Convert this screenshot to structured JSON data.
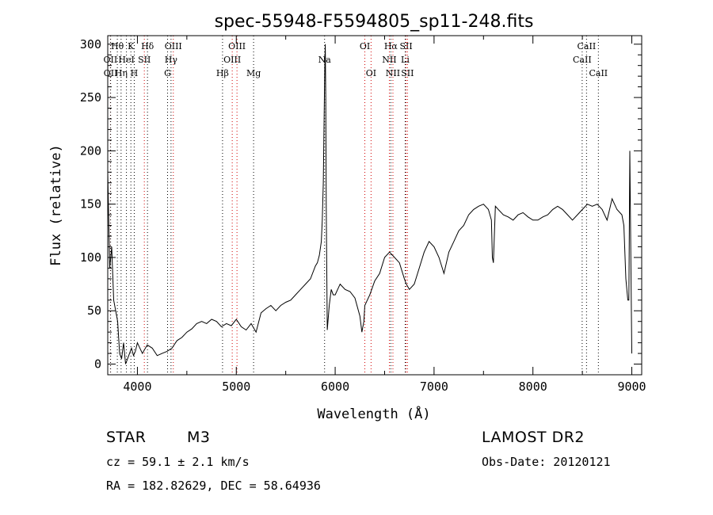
{
  "chart_data": {
    "type": "line",
    "title": "spec-55948-F5594805_sp11-248.fits",
    "xlabel": "Wavelength (Å)",
    "ylabel": "Flux (relative)",
    "xlim": [
      3700,
      9100
    ],
    "ylim": [
      -10,
      308
    ],
    "xticks": [
      4000,
      5000,
      6000,
      7000,
      8000,
      9000
    ],
    "yticks": [
      0,
      50,
      100,
      150,
      200,
      250,
      300
    ],
    "grid": false,
    "series": [
      {
        "x": [
          3700,
          3720,
          3740,
          3760,
          3780,
          3800,
          3820,
          3840,
          3860,
          3880,
          3900,
          3920,
          3940,
          3960,
          3980,
          4000,
          4050,
          4100,
          4150,
          4200,
          4250,
          4300,
          4350,
          4400,
          4450,
          4500,
          4550,
          4600,
          4650,
          4700,
          4750,
          4800,
          4850,
          4900,
          4950,
          5000,
          5050,
          5100,
          5150,
          5200,
          5250,
          5300,
          5350,
          5400,
          5450,
          5500,
          5550,
          5600,
          5650,
          5700,
          5750,
          5800,
          5820,
          5840,
          5860,
          5870,
          5880,
          5890,
          5895,
          5900,
          5905,
          5910,
          5920,
          5940,
          5960,
          5980,
          6000,
          6050,
          6100,
          6150,
          6200,
          6250,
          6270,
          6290,
          6300,
          6350,
          6400,
          6450,
          6500,
          6550,
          6600,
          6650,
          6700,
          6720,
          6750,
          6800,
          6850,
          6900,
          6950,
          7000,
          7050,
          7100,
          7150,
          7200,
          7250,
          7300,
          7350,
          7400,
          7450,
          7500,
          7550,
          7580,
          7590,
          7600,
          7620,
          7650,
          7700,
          7750,
          7800,
          7850,
          7900,
          7950,
          8000,
          8050,
          8100,
          8150,
          8200,
          8250,
          8300,
          8350,
          8400,
          8450,
          8500,
          8550,
          8600,
          8650,
          8700,
          8750,
          8800,
          8850,
          8900,
          8920,
          8940,
          8960,
          8970,
          8980,
          8990,
          9000
        ],
        "y": [
          180,
          90,
          110,
          60,
          50,
          40,
          10,
          5,
          20,
          0,
          5,
          10,
          15,
          8,
          12,
          20,
          10,
          18,
          15,
          8,
          10,
          12,
          15,
          22,
          25,
          30,
          33,
          38,
          40,
          38,
          42,
          40,
          35,
          38,
          36,
          42,
          35,
          32,
          38,
          30,
          48,
          52,
          55,
          50,
          55,
          58,
          60,
          65,
          70,
          75,
          80,
          92,
          95,
          102,
          115,
          135,
          170,
          240,
          280,
          300,
          250,
          150,
          32,
          55,
          70,
          65,
          65,
          75,
          70,
          68,
          62,
          45,
          30,
          40,
          55,
          65,
          78,
          85,
          100,
          105,
          100,
          95,
          80,
          75,
          70,
          75,
          90,
          105,
          115,
          110,
          100,
          85,
          105,
          115,
          125,
          130,
          140,
          145,
          148,
          150,
          145,
          135,
          100,
          95,
          148,
          145,
          140,
          138,
          135,
          140,
          142,
          138,
          135,
          135,
          138,
          140,
          145,
          148,
          145,
          140,
          135,
          140,
          145,
          150,
          148,
          150,
          145,
          135,
          155,
          145,
          140,
          130,
          80,
          60,
          60,
          200,
          100,
          10
        ]
      }
    ],
    "lines": [
      {
        "label": "Hθ",
        "x": 3797,
        "row": 0,
        "color": "#000000"
      },
      {
        "label": "OII",
        "x": 3727,
        "row": 1,
        "color": "#d00000"
      },
      {
        "label": "OII",
        "x": 3729,
        "row": 2,
        "color": "#000000"
      },
      {
        "label": "Hη",
        "x": 3835,
        "row": 2,
        "color": "#000000"
      },
      {
        "label": "K",
        "x": 3934,
        "row": 0,
        "color": "#000000"
      },
      {
        "label": "HeI",
        "x": 3889,
        "row": 1,
        "color": "#000000"
      },
      {
        "label": "H",
        "x": 3968,
        "row": 2,
        "color": "#000000"
      },
      {
        "label": "SII",
        "x": 4070,
        "row": 1,
        "color": "#d00000"
      },
      {
        "label": "Hδ",
        "x": 4102,
        "row": 0,
        "color": "#000000"
      },
      {
        "label": "OIII",
        "x": 4363,
        "row": 0,
        "color": "#d00000"
      },
      {
        "label": "Hγ",
        "x": 4340,
        "row": 1,
        "color": "#000000"
      },
      {
        "label": "G",
        "x": 4305,
        "row": 2,
        "color": "#000000"
      },
      {
        "label": "Hβ",
        "x": 4861,
        "row": 2,
        "color": "#000000"
      },
      {
        "label": "OIII",
        "x": 5007,
        "row": 0,
        "color": "#d00000"
      },
      {
        "label": "OIII",
        "x": 4959,
        "row": 1,
        "color": "#d00000"
      },
      {
        "label": "Mg",
        "x": 5175,
        "row": 2,
        "color": "#000000"
      },
      {
        "label": "Na",
        "x": 5893,
        "row": 1,
        "color": "#000000"
      },
      {
        "label": "OI",
        "x": 6300,
        "row": 0,
        "color": "#d00000"
      },
      {
        "label": "OI",
        "x": 6363,
        "row": 2,
        "color": "#d00000"
      },
      {
        "label": "Hα",
        "x": 6563,
        "row": 0,
        "color": "#000000"
      },
      {
        "label": "NII",
        "x": 6548,
        "row": 1,
        "color": "#d00000"
      },
      {
        "label": "NII",
        "x": 6584,
        "row": 2,
        "color": "#d00000"
      },
      {
        "label": "SII",
        "x": 6717,
        "row": 0,
        "color": "#d00000"
      },
      {
        "label": "Li",
        "x": 6708,
        "row": 1,
        "color": "#000000"
      },
      {
        "label": "SII",
        "x": 6731,
        "row": 2,
        "color": "#d00000"
      },
      {
        "label": "CaII",
        "x": 8542,
        "row": 0,
        "color": "#000000"
      },
      {
        "label": "CaII",
        "x": 8498,
        "row": 1,
        "color": "#000000"
      },
      {
        "label": "CaII",
        "x": 8662,
        "row": 2,
        "color": "#000000"
      }
    ]
  },
  "info": {
    "object_class": "STAR",
    "subclass": "M3",
    "survey": "LAMOST DR2",
    "redshift": "cz = 59.1 ± 2.1 km/s",
    "obs_date": "Obs-Date: 20120121",
    "coordinates": "RA = 182.82629, DEC =  58.64936"
  }
}
